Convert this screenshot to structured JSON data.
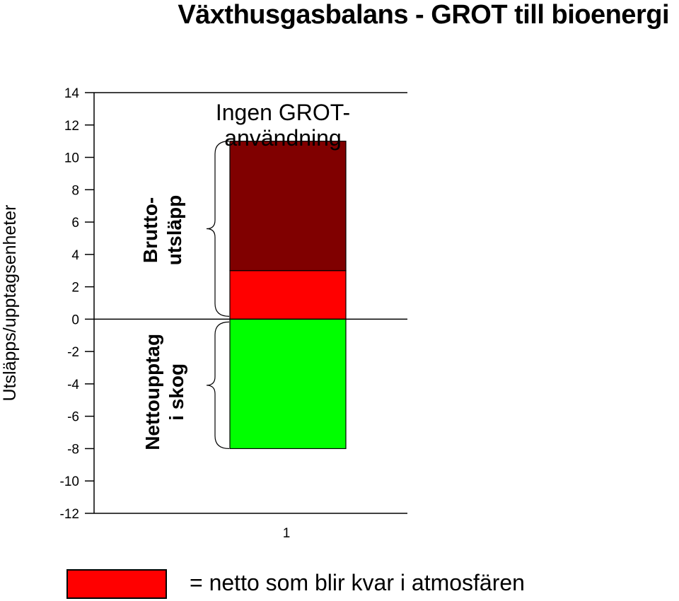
{
  "chart_data": {
    "type": "bar",
    "title": "Växthusgasbalans - GROT till bioenergi",
    "ylabel": "Utsläpps/upptagsenheter",
    "xlabel": "",
    "ylim": [
      -12,
      14
    ],
    "y_ticks": [
      "14",
      "12",
      "10",
      "8",
      "6",
      "4",
      "2",
      "0",
      "-2",
      "-4",
      "-6",
      "-8",
      "-10",
      "-12"
    ],
    "categories": [
      "1"
    ],
    "stack": [
      {
        "from": 0,
        "to": 3,
        "color": "#ff0000"
      },
      {
        "from": 3,
        "to": 11,
        "color": "#800000"
      },
      {
        "from": 0,
        "to": -8,
        "color": "#00ff00"
      }
    ],
    "bar_label": "Ingen GROT-\nanvändning",
    "bracket_labels": {
      "upper": "Brutto-\nutsläpp",
      "lower": "Nettoupptag\ni skog"
    },
    "grid": false
  },
  "legend": {
    "color": "#ff0000",
    "text": "= netto som blir kvar i atmosfären"
  }
}
